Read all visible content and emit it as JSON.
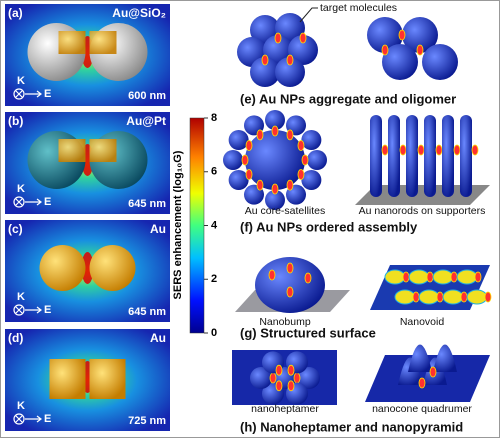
{
  "panels": [
    {
      "label": "(a)",
      "material": "Au@SiO₂",
      "wavelength": "600 nm",
      "k": "K",
      "e": "E"
    },
    {
      "label": "(b)",
      "material": "Au@Pt",
      "wavelength": "645 nm",
      "k": "K",
      "e": "E"
    },
    {
      "label": "(c)",
      "material": "Au",
      "wavelength": "645 nm",
      "k": "K",
      "e": "E"
    },
    {
      "label": "(d)",
      "material": "Au",
      "wavelength": "725 nm",
      "k": "K",
      "e": "E"
    }
  ],
  "colorbar": {
    "label": "SERS enhancement (log₁₀G)",
    "lim": [
      0,
      8
    ],
    "ticks": [
      0,
      2,
      4,
      6,
      8
    ]
  },
  "annotation": "target molecules",
  "sections": [
    {
      "caption": "(e) Au NPs aggregate and oligomer",
      "items": []
    },
    {
      "caption": "(f) Au NPs ordered assembly",
      "items": [
        "Au core-satellites",
        "Au nanorods on supporters"
      ]
    },
    {
      "caption": "(g) Structured surface",
      "items": [
        "Nanobump",
        "Nanovoid"
      ]
    },
    {
      "caption": "(h) Nanoheptamer and nanopyramid",
      "items": [
        "nanoheptamer",
        "nanocone quadrumer"
      ]
    }
  ]
}
